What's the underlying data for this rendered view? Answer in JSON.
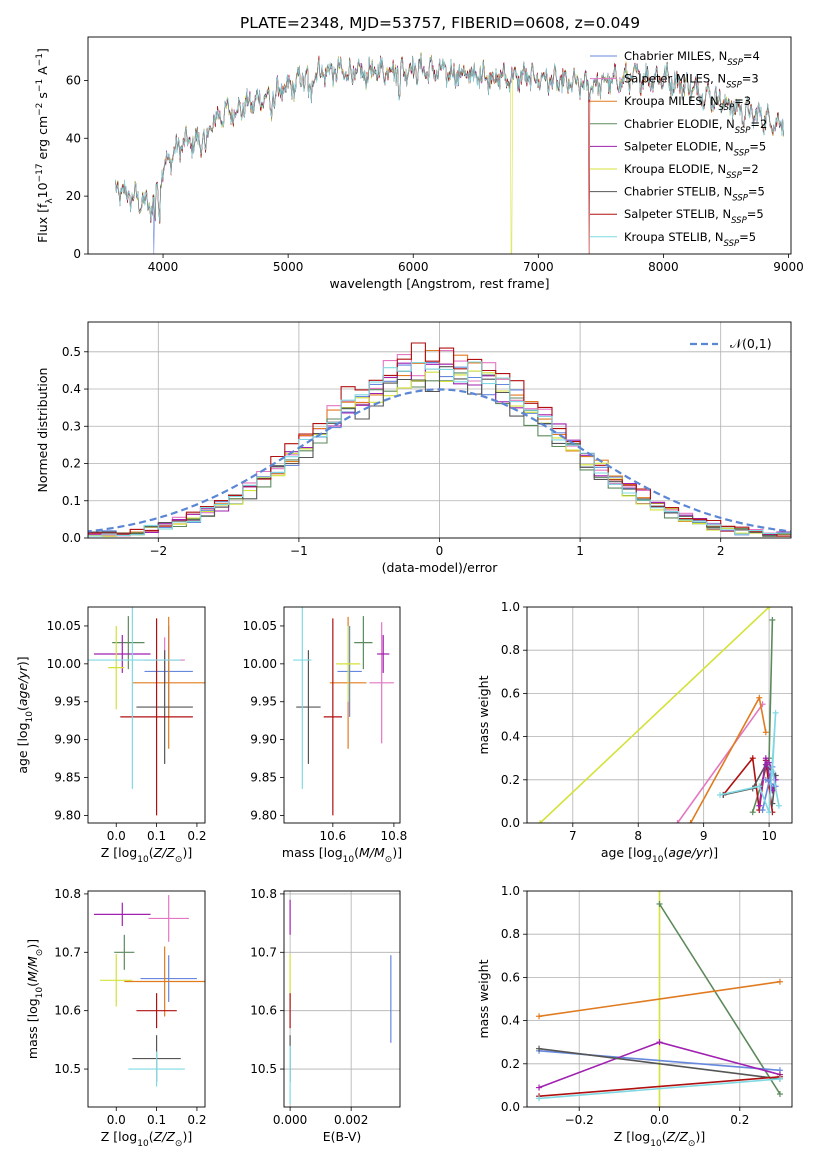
{
  "title": "PLATE=2348, MJD=53757, FIBERID=0608, z=0.049",
  "colors": {
    "Chabrier MILES": "#6688dd",
    "Salpeter MILES": "#e377c2",
    "Kroupa MILES": "#e07b20",
    "Chabrier ELODIE": "#5c8a5c",
    "Salpeter ELODIE": "#a020b0",
    "Kroupa ELODIE": "#d4e23a",
    "Chabrier STELIB": "#555555",
    "Salpeter STELIB": "#b01010",
    "Kroupa STELIB": "#7fd9e3"
  },
  "legend_spec": [
    {
      "imf": "Chabrier",
      "lib": "MILES",
      "n": "4"
    },
    {
      "imf": "Salpeter",
      "lib": "MILES",
      "n": "3"
    },
    {
      "imf": "Kroupa",
      "lib": "MILES",
      "n": "3"
    },
    {
      "imf": "Chabrier",
      "lib": "ELODIE",
      "n": "2"
    },
    {
      "imf": "Salpeter",
      "lib": "ELODIE",
      "n": "5"
    },
    {
      "imf": "Kroupa",
      "lib": "ELODIE",
      "n": "2"
    },
    {
      "imf": "Chabrier",
      "lib": "STELIB",
      "n": "5"
    },
    {
      "imf": "Salpeter",
      "lib": "STELIB",
      "n": "5"
    },
    {
      "imf": "Kroupa",
      "lib": "STELIB",
      "n": "5"
    }
  ],
  "chart_data": [
    {
      "id": "spectrum",
      "type": "line",
      "xlabel": "wavelength [Angstrom, rest frame]",
      "ylabel": "Flux [f_λ 10^-17 erg cm^-2 s^-1 A^-1]",
      "xlim": [
        3400,
        9020
      ],
      "ylim": [
        0,
        75
      ],
      "xticks": [
        4000,
        5000,
        6000,
        7000,
        8000,
        9000
      ],
      "yticks": [
        0,
        20,
        40,
        60
      ],
      "legend_position": "top-right",
      "continuum": [
        [
          3620,
          22
        ],
        [
          3800,
          19
        ],
        [
          3900,
          16
        ],
        [
          4000,
          30
        ],
        [
          4150,
          38
        ],
        [
          4300,
          39
        ],
        [
          4450,
          48
        ],
        [
          4600,
          50
        ],
        [
          4800,
          54
        ],
        [
          5000,
          57
        ],
        [
          5200,
          63
        ],
        [
          5400,
          63
        ],
        [
          5600,
          62
        ],
        [
          5800,
          64
        ],
        [
          6000,
          64
        ],
        [
          6200,
          63
        ],
        [
          6400,
          62
        ],
        [
          6600,
          61
        ],
        [
          6800,
          61
        ],
        [
          7000,
          61
        ],
        [
          7200,
          59
        ],
        [
          7400,
          58
        ],
        [
          7600,
          60
        ],
        [
          7800,
          61
        ],
        [
          8000,
          61
        ],
        [
          8200,
          58
        ],
        [
          8400,
          54
        ],
        [
          8600,
          50
        ],
        [
          8800,
          47
        ],
        [
          8960,
          45
        ]
      ],
      "dropouts": [
        {
          "name": "Chabrier MILES",
          "x": 3925
        },
        {
          "name": "Kroupa ELODIE",
          "x": 6785
        },
        {
          "name": "Salpeter STELIB",
          "x": 7405
        }
      ]
    },
    {
      "id": "residuals",
      "type": "step",
      "xlabel": "(data-model)/error",
      "ylabel": "Normed distribution",
      "xlim": [
        -2.5,
        2.5
      ],
      "ylim": [
        0,
        0.58
      ],
      "xticks": [
        -2,
        -1,
        0,
        1,
        2
      ],
      "yticks": [
        0.0,
        0.1,
        0.2,
        0.3,
        0.4,
        0.5
      ],
      "grid": true,
      "legend_position": "top-right",
      "reference": {
        "name": "𝒩(0,1)",
        "mean": 0,
        "sigma": 1
      },
      "peaks": {
        "Chabrier MILES": 0.45,
        "Salpeter MILES": 0.48,
        "Kroupa MILES": 0.47,
        "Chabrier ELODIE": 0.44,
        "Salpeter ELODIE": 0.46,
        "Kroupa ELODIE": 0.45,
        "Chabrier STELIB": 0.43,
        "Salpeter STELIB": 0.5,
        "Kroupa STELIB": 0.46
      }
    },
    {
      "id": "age-vs-z",
      "type": "errorbar",
      "xlabel": "Z [log10(Z/Z⊙)]",
      "ylabel": "age [log10(age/yr)]",
      "xlim": [
        -0.07,
        0.22
      ],
      "ylim": [
        9.79,
        10.075
      ],
      "xticks": [
        0.0,
        0.1,
        0.2
      ],
      "yticks": [
        9.8,
        9.85,
        9.9,
        9.95,
        10.0,
        10.05
      ],
      "points": [
        {
          "name": "Chabrier MILES",
          "x": 0.13,
          "xerr": 0.06,
          "y": 9.99,
          "yerr": 0.06
        },
        {
          "name": "Salpeter MILES",
          "x": 0.12,
          "xerr": 0.05,
          "y": 10.005,
          "yerr": 0.03
        },
        {
          "name": "Kroupa MILES",
          "x": 0.13,
          "xerr": 0.09,
          "y": 9.975,
          "yerr": 0.087
        },
        {
          "name": "Chabrier ELODIE",
          "x": 0.03,
          "xerr": 0.04,
          "y": 10.028,
          "yerr": 0.035
        },
        {
          "name": "Salpeter ELODIE",
          "x": 0.015,
          "xerr": 0.07,
          "y": 10.013,
          "yerr": 0.025
        },
        {
          "name": "Kroupa ELODIE",
          "x": 0.0,
          "xerr": 0.02,
          "y": 9.995,
          "yerr": 0.055
        },
        {
          "name": "Chabrier STELIB",
          "x": 0.12,
          "xerr": 0.07,
          "y": 9.943,
          "yerr": 0.075
        },
        {
          "name": "Salpeter STELIB",
          "x": 0.1,
          "xerr": 0.09,
          "y": 9.93,
          "yerr": 0.13
        },
        {
          "name": "Kroupa STELIB",
          "x": 0.04,
          "xerr": 0.12,
          "y": 10.005,
          "yerr": 0.17
        }
      ]
    },
    {
      "id": "age-vs-mass",
      "type": "errorbar",
      "xlabel": "mass [log10(M/M⊙)]",
      "ylabel": "",
      "xlim": [
        10.44,
        10.82
      ],
      "ylim": [
        9.79,
        10.075
      ],
      "xticks": [
        10.6,
        10.8
      ],
      "yticks": [
        9.8,
        9.85,
        9.9,
        9.95,
        10.0,
        10.05
      ],
      "points": [
        {
          "name": "Chabrier MILES",
          "x": 10.655,
          "xerr": 0.04,
          "y": 9.99,
          "yerr": 0.06
        },
        {
          "name": "Salpeter MILES",
          "x": 10.76,
          "xerr": 0.04,
          "y": 9.975,
          "yerr": 0.08
        },
        {
          "name": "Kroupa MILES",
          "x": 10.65,
          "xerr": 0.06,
          "y": 9.975,
          "yerr": 0.087
        },
        {
          "name": "Chabrier ELODIE",
          "x": 10.7,
          "xerr": 0.03,
          "y": 10.028,
          "yerr": 0.035
        },
        {
          "name": "Salpeter ELODIE",
          "x": 10.765,
          "xerr": 0.02,
          "y": 10.013,
          "yerr": 0.025
        },
        {
          "name": "Kroupa ELODIE",
          "x": 10.65,
          "xerr": 0.04,
          "y": 10.0,
          "yerr": 0.05
        },
        {
          "name": "Chabrier STELIB",
          "x": 10.52,
          "xerr": 0.04,
          "y": 9.943,
          "yerr": 0.075
        },
        {
          "name": "Salpeter STELIB",
          "x": 10.6,
          "xerr": 0.03,
          "y": 9.93,
          "yerr": 0.13
        },
        {
          "name": "Kroupa STELIB",
          "x": 10.5,
          "xerr": 0.03,
          "y": 10.005,
          "yerr": 0.17
        }
      ]
    },
    {
      "id": "weight-vs-age",
      "type": "line",
      "xlabel": "age [log10(age/yr)]",
      "ylabel": "mass weight",
      "xlim": [
        6.3,
        10.35
      ],
      "ylim": [
        0,
        1.0
      ],
      "xticks": [
        7,
        8,
        9,
        10
      ],
      "yticks": [
        0.0,
        0.2,
        0.4,
        0.6,
        0.8,
        1.0
      ],
      "grid": true,
      "series": [
        {
          "name": "Kroupa ELODIE",
          "x": [
            6.5,
            10.0
          ],
          "y": [
            0.0,
            1.0
          ]
        },
        {
          "name": "Salpeter MILES",
          "x": [
            8.6,
            9.9
          ],
          "y": [
            0.0,
            0.55
          ]
        },
        {
          "name": "Kroupa MILES",
          "x": [
            8.8,
            9.85,
            9.95
          ],
          "y": [
            0.0,
            0.58,
            0.42
          ]
        },
        {
          "name": "Chabrier ELODIE",
          "x": [
            9.75,
            10.0,
            10.05
          ],
          "y": [
            0.05,
            0.3,
            0.94
          ]
        },
        {
          "name": "Salpeter STELIB",
          "x": [
            9.3,
            9.75,
            9.85,
            9.95,
            10.05
          ],
          "y": [
            0.13,
            0.3,
            0.06,
            0.29,
            0.05
          ]
        },
        {
          "name": "Chabrier STELIB",
          "x": [
            9.3,
            9.75,
            9.95,
            10.1,
            10.05
          ],
          "y": [
            0.13,
            0.16,
            0.27,
            0.22,
            0.09
          ]
        },
        {
          "name": "Salpeter ELODIE",
          "x": [
            9.85,
            9.95,
            10.05,
            10.1,
            10.0
          ],
          "y": [
            0.08,
            0.3,
            0.15,
            0.2,
            0.28
          ]
        },
        {
          "name": "Chabrier MILES",
          "x": [
            9.9,
            10.05,
            10.1,
            9.95
          ],
          "y": [
            0.06,
            0.26,
            0.17,
            0.2
          ]
        },
        {
          "name": "Kroupa STELIB",
          "x": [
            9.25,
            9.85,
            10.0,
            10.1,
            10.05,
            10.15
          ],
          "y": [
            0.13,
            0.17,
            0.05,
            0.51,
            0.24,
            0.08
          ]
        }
      ]
    },
    {
      "id": "mass-vs-z",
      "type": "errorbar",
      "xlabel": "Z [log10(Z/Z⊙)]",
      "ylabel": "mass [log10(M/M⊙)]",
      "xlim": [
        -0.07,
        0.22
      ],
      "ylim": [
        10.435,
        10.805
      ],
      "xticks": [
        0.0,
        0.1,
        0.2
      ],
      "yticks": [
        10.5,
        10.6,
        10.7,
        10.8
      ],
      "points": [
        {
          "name": "Chabrier MILES",
          "x": 0.13,
          "xerr": 0.07,
          "y": 10.655,
          "yerr": 0.04
        },
        {
          "name": "Salpeter MILES",
          "x": 0.13,
          "xerr": 0.05,
          "y": 10.758,
          "yerr": 0.04
        },
        {
          "name": "Kroupa MILES",
          "x": 0.12,
          "xerr": 0.1,
          "y": 10.65,
          "yerr": 0.06
        },
        {
          "name": "Chabrier ELODIE",
          "x": 0.02,
          "xerr": 0.025,
          "y": 10.7,
          "yerr": 0.03
        },
        {
          "name": "Salpeter ELODIE",
          "x": 0.015,
          "xerr": 0.07,
          "y": 10.765,
          "yerr": 0.02
        },
        {
          "name": "Kroupa ELODIE",
          "x": 0.0,
          "xerr": 0.04,
          "y": 10.652,
          "yerr": 0.045
        },
        {
          "name": "Chabrier STELIB",
          "x": 0.1,
          "xerr": 0.06,
          "y": 10.518,
          "yerr": 0.04
        },
        {
          "name": "Salpeter STELIB",
          "x": 0.1,
          "xerr": 0.05,
          "y": 10.6,
          "yerr": 0.03
        },
        {
          "name": "Kroupa STELIB",
          "x": 0.1,
          "xerr": 0.07,
          "y": 10.5,
          "yerr": 0.03
        }
      ]
    },
    {
      "id": "mass-vs-ebv",
      "type": "errorbar",
      "xlabel": "E(B-V)",
      "ylabel": "",
      "xlim": [
        -0.0002,
        0.0036
      ],
      "ylim": [
        10.435,
        10.805
      ],
      "xticks": [
        0.0,
        0.002
      ],
      "xtick_labels": [
        "0.000",
        "0.002"
      ],
      "yticks": [
        10.5,
        10.6,
        10.7,
        10.8
      ],
      "grid": true,
      "points": [
        {
          "name": "Kroupa ELODIE",
          "x": 0.0,
          "xerr": 0,
          "y": 10.652,
          "yerr": 0.045
        },
        {
          "name": "Salpeter ELODIE",
          "x": 0.0,
          "xerr": 0,
          "y": 10.76,
          "yerr": 0.03
        },
        {
          "name": "Salpeter STELIB",
          "x": 0.0,
          "xerr": 0,
          "y": 10.6,
          "yerr": 0.03
        },
        {
          "name": "Chabrier STELIB",
          "x": 0.0,
          "xerr": 0,
          "y": 10.518,
          "yerr": 0.04
        },
        {
          "name": "Kroupa STELIB",
          "x": 0.0,
          "xerr": 0,
          "y": 10.49,
          "yerr": 0.05
        },
        {
          "name": "Chabrier MILES",
          "x": 0.0033,
          "xerr": 0,
          "y": 10.62,
          "yerr": 0.075
        }
      ]
    },
    {
      "id": "weight-vs-z",
      "type": "line",
      "xlabel": "Z [log10(Z/Z⊙)]",
      "ylabel": "mass weight",
      "xlim": [
        -0.33,
        0.33
      ],
      "ylim": [
        0,
        1.0
      ],
      "xticks": [
        -0.2,
        0.0,
        0.2
      ],
      "yticks": [
        0.0,
        0.2,
        0.4,
        0.6,
        0.8,
        1.0
      ],
      "grid": true,
      "series": [
        {
          "name": "Kroupa ELODIE",
          "x": [
            0.0,
            0.0
          ],
          "y": [
            0.0,
            1.0
          ]
        },
        {
          "name": "Chabrier ELODIE",
          "x": [
            0.0,
            0.3
          ],
          "y": [
            0.94,
            0.06
          ]
        },
        {
          "name": "Kroupa MILES",
          "x": [
            -0.3,
            0.3
          ],
          "y": [
            0.42,
            0.58
          ]
        },
        {
          "name": "Chabrier MILES",
          "x": [
            -0.3,
            0.3
          ],
          "y": [
            0.26,
            0.17
          ]
        },
        {
          "name": "Salpeter ELODIE",
          "x": [
            -0.3,
            0.0,
            0.3
          ],
          "y": [
            0.09,
            0.3,
            0.15
          ]
        },
        {
          "name": "Chabrier STELIB",
          "x": [
            -0.3,
            0.3
          ],
          "y": [
            0.27,
            0.13
          ]
        },
        {
          "name": "Salpeter STELIB",
          "x": [
            -0.3,
            0.3
          ],
          "y": [
            0.05,
            0.14
          ]
        },
        {
          "name": "Kroupa STELIB",
          "x": [
            -0.3,
            0.3
          ],
          "y": [
            0.04,
            0.13
          ]
        }
      ]
    }
  ]
}
